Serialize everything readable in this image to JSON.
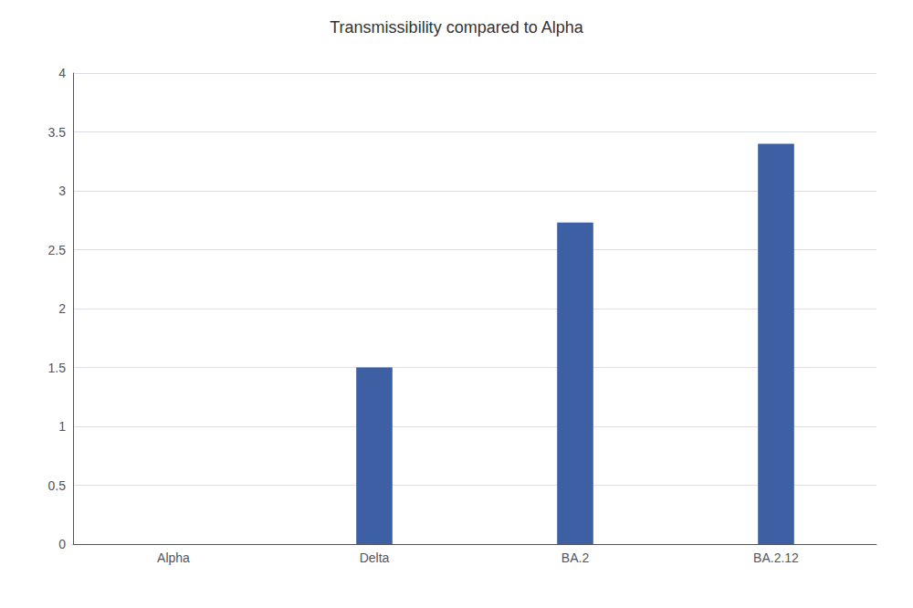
{
  "chart_data": {
    "type": "bar",
    "title": "Transmissibility compared to Alpha",
    "categories": [
      "Alpha",
      "Delta",
      "BA.2",
      "BA.2.12"
    ],
    "values": [
      0,
      1.5,
      2.73,
      3.4
    ],
    "color": "#3D5FA4",
    "ylim": [
      0,
      4
    ],
    "yticks": [
      0,
      0.5,
      1,
      1.5,
      2,
      2.5,
      3,
      3.5,
      4
    ],
    "grid": true
  }
}
